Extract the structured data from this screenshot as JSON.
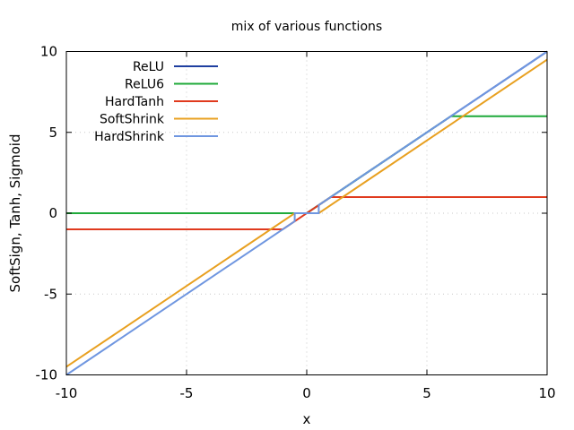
{
  "chart_data": {
    "type": "line",
    "title": "mix of various functions",
    "xlabel": "x",
    "ylabel": "SoftSign, Tanh, Sigmoid",
    "xlim": [
      -10,
      10
    ],
    "ylim": [
      -10,
      10
    ],
    "xticks": [
      -10,
      -5,
      0,
      5,
      10
    ],
    "yticks": [
      -10,
      -5,
      0,
      5,
      10
    ],
    "xtick_labels": [
      "-10",
      "-5",
      "0",
      "5",
      "10"
    ],
    "ytick_labels": [
      "-10",
      "-5",
      "0",
      "5",
      "10"
    ],
    "grid": true,
    "legend_position": "top-left",
    "series": [
      {
        "name": "ReLU",
        "color": "#1f3fa0",
        "points": [
          [
            -10,
            0
          ],
          [
            0,
            0
          ],
          [
            10,
            10
          ]
        ]
      },
      {
        "name": "ReLU6",
        "color": "#1faa3a",
        "points": [
          [
            -10,
            0
          ],
          [
            0,
            0
          ],
          [
            6,
            6
          ],
          [
            10,
            6
          ]
        ]
      },
      {
        "name": "HardTanh",
        "color": "#e03a1e",
        "points": [
          [
            -10,
            -1
          ],
          [
            -1,
            -1
          ],
          [
            1,
            1
          ],
          [
            10,
            1
          ]
        ]
      },
      {
        "name": "SoftShrink",
        "color": "#e8a020",
        "points": [
          [
            -10,
            -9.5
          ],
          [
            -0.5,
            0
          ],
          [
            0.5,
            0
          ],
          [
            10,
            9.5
          ]
        ]
      },
      {
        "name": "HardShrink",
        "color": "#6f96e0",
        "points": [
          [
            -10,
            -10
          ],
          [
            -0.5,
            -0.5
          ],
          [
            -0.5,
            0
          ],
          [
            0.5,
            0
          ],
          [
            0.5,
            0.5
          ],
          [
            10,
            10
          ]
        ]
      }
    ]
  }
}
